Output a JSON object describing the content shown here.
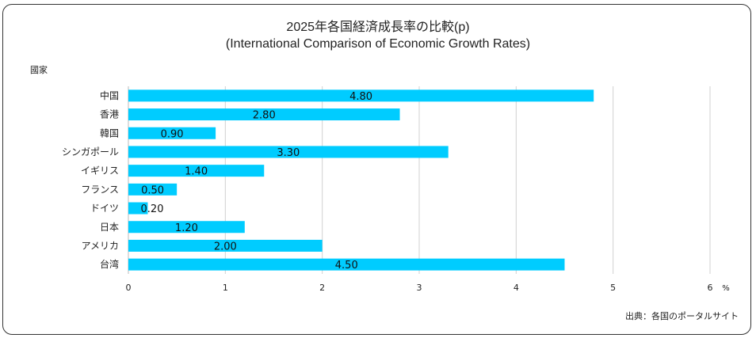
{
  "chart_data": {
    "type": "bar",
    "orientation": "horizontal",
    "title": "2025年各国経済成長率の比較(p)",
    "subtitle": "(International Comparison of Economic Growth Rates)",
    "ylabel": "國家",
    "xlabel": "%",
    "categories": [
      "中国",
      "香港",
      "韓国",
      "シンガポール",
      "イギリス",
      "フランス",
      "ドイツ",
      "日本",
      "アメリカ",
      "台湾"
    ],
    "values": [
      4.8,
      2.8,
      0.9,
      3.3,
      1.4,
      0.5,
      0.2,
      1.2,
      2.0,
      4.5
    ],
    "data_labels": [
      "4.80",
      "2.80",
      "0.90",
      "3.30",
      "1.40",
      "0.50",
      "0.20",
      "1.20",
      "2.00",
      "4.50"
    ],
    "xlim": [
      0,
      6
    ],
    "xticks": [
      "0",
      "1",
      "2",
      "3",
      "4",
      "5",
      "6"
    ],
    "grid": true,
    "bar_color": "#00CCFF",
    "source": "出典：各国のポータルサイト"
  }
}
